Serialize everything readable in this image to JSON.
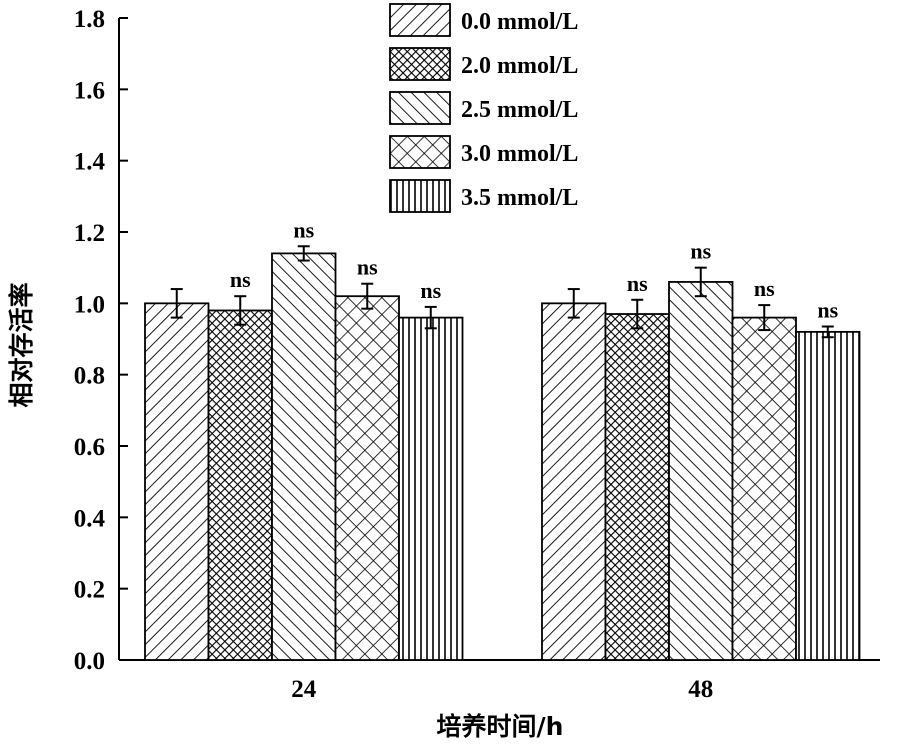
{
  "chart_data": {
    "type": "bar",
    "xlabel": "培养时间/h",
    "ylabel": "相对存活率",
    "categories": [
      "24",
      "48"
    ],
    "ylim": [
      0,
      1.8
    ],
    "yticks": [
      "0.0",
      "0.2",
      "0.4",
      "0.6",
      "0.8",
      "1.0",
      "1.2",
      "1.4",
      "1.6",
      "1.8"
    ],
    "grid": false,
    "legend_position": "top",
    "series": [
      {
        "name": "0.0 mmol/L",
        "pattern": "diagonal-up",
        "values": [
          1.0,
          1.0
        ],
        "errors": [
          0.04,
          0.04
        ],
        "annotations": [
          "",
          ""
        ]
      },
      {
        "name": "2.0 mmol/L",
        "pattern": "fine-crosshatch",
        "values": [
          0.98,
          0.97
        ],
        "errors": [
          0.04,
          0.04
        ],
        "annotations": [
          "ns",
          "ns"
        ]
      },
      {
        "name": "2.5 mmol/L",
        "pattern": "diagonal-down",
        "values": [
          1.14,
          1.06
        ],
        "errors": [
          0.02,
          0.04
        ],
        "annotations": [
          "ns",
          "ns"
        ]
      },
      {
        "name": "3.0 mmol/L",
        "pattern": "coarse-crosshatch",
        "values": [
          1.02,
          0.96
        ],
        "errors": [
          0.035,
          0.035
        ],
        "annotations": [
          "ns",
          "ns"
        ]
      },
      {
        "name": "3.5 mmol/L",
        "pattern": "vertical",
        "values": [
          0.96,
          0.92
        ],
        "errors": [
          0.03,
          0.015
        ],
        "annotations": [
          "ns",
          "ns"
        ]
      }
    ]
  }
}
